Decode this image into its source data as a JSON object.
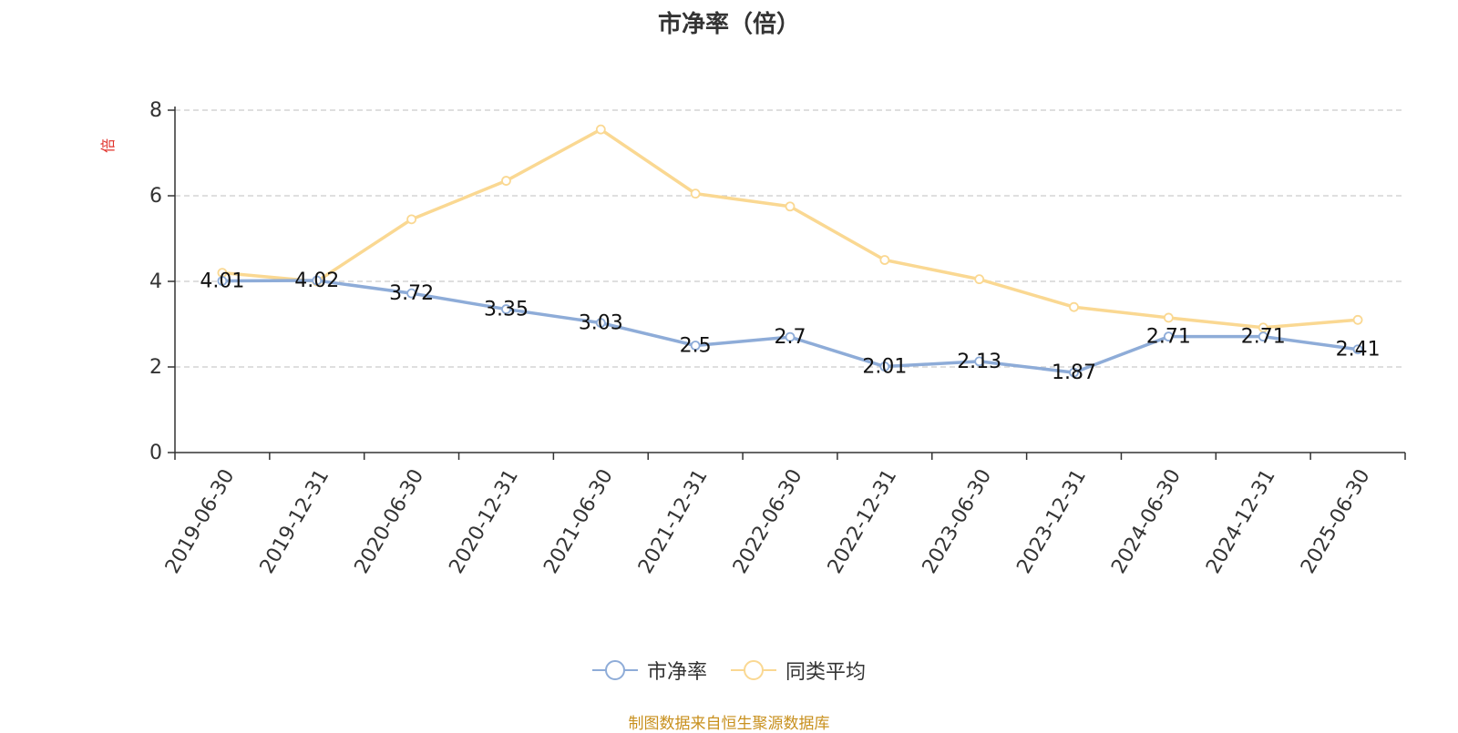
{
  "chart_data": {
    "type": "line",
    "title": "市净率（倍）",
    "ylabel": "倍",
    "xlabel": "",
    "categories": [
      "2019-06-30",
      "2019-12-31",
      "2020-06-30",
      "2020-12-31",
      "2021-06-30",
      "2021-12-31",
      "2022-06-30",
      "2022-12-31",
      "2023-06-30",
      "2023-12-31",
      "2024-06-30",
      "2024-12-31",
      "2025-06-30"
    ],
    "ylim": [
      0,
      8
    ],
    "yticks": [
      0,
      2,
      4,
      6,
      8
    ],
    "grid": true,
    "legend_position": "bottom",
    "series": [
      {
        "name": "市净率",
        "color": "#8eacd8",
        "show_labels": true,
        "values": [
          4.01,
          4.02,
          3.72,
          3.35,
          3.03,
          2.5,
          2.7,
          2.01,
          2.13,
          1.87,
          2.71,
          2.71,
          2.41
        ],
        "labels": [
          "4.01",
          "4.02",
          "3.72",
          "3.35",
          "3.03",
          "2.5",
          "2.7",
          "2.01",
          "2.13",
          "1.87",
          "2.71",
          "2.71",
          "2.41"
        ]
      },
      {
        "name": "同类平均",
        "color": "#fad892",
        "show_labels": false,
        "values": [
          4.2,
          4.0,
          5.45,
          6.35,
          7.55,
          6.05,
          5.75,
          4.5,
          4.05,
          3.4,
          3.15,
          2.92,
          3.1
        ]
      }
    ]
  },
  "source_note": "制图数据来自恒生聚源数据库",
  "colors": {
    "axis": "#333333",
    "grid": "#cccccc",
    "ylabel": "#e0312a",
    "source": "#c8901e"
  }
}
